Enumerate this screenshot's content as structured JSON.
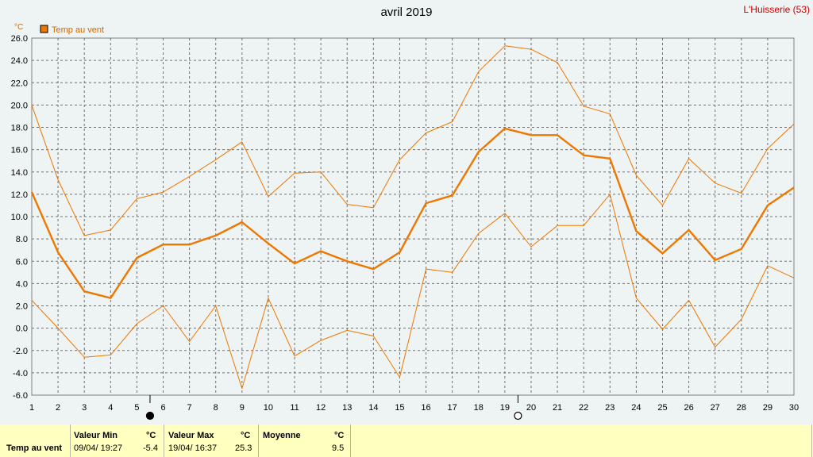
{
  "chart_data": {
    "type": "line",
    "title": "avril 2019",
    "station": "L'Huisserie (53)",
    "ylabel": "°C",
    "xlabel": "",
    "ylim": [
      -6,
      26
    ],
    "ytick_step": 2,
    "grid": true,
    "legend": {
      "placement": "top-left",
      "label": "Temp au vent",
      "color": "#ee7700"
    },
    "x": [
      1,
      2,
      3,
      4,
      5,
      6,
      7,
      8,
      9,
      10,
      11,
      12,
      13,
      14,
      15,
      16,
      17,
      18,
      19,
      20,
      21,
      22,
      23,
      24,
      25,
      26,
      27,
      28,
      29,
      30
    ],
    "series": [
      {
        "role": "max",
        "color": "#ee7700",
        "values": [
          20.0,
          13.3,
          8.3,
          8.8,
          11.6,
          12.2,
          13.6,
          15.1,
          16.7,
          11.8,
          13.9,
          14.0,
          11.1,
          10.8,
          15.1,
          17.5,
          18.5,
          23.0,
          25.3,
          25.0,
          23.8,
          19.9,
          19.2,
          13.7,
          11.0,
          15.2,
          13.0,
          12.1,
          16.1,
          18.3
        ]
      },
      {
        "role": "mean",
        "color": "#ee7700",
        "values": [
          12.2,
          6.8,
          3.3,
          2.7,
          6.3,
          7.5,
          7.5,
          8.3,
          9.5,
          7.6,
          5.8,
          6.9,
          6.0,
          5.3,
          6.8,
          11.2,
          11.9,
          15.8,
          17.9,
          17.3,
          17.3,
          15.5,
          15.2,
          8.7,
          6.7,
          8.8,
          6.1,
          7.1,
          11.0,
          12.6
        ]
      },
      {
        "role": "min",
        "color": "#ee7700",
        "values": [
          2.5,
          0.0,
          -2.6,
          -2.4,
          0.4,
          2.0,
          -1.2,
          2.0,
          -5.4,
          2.7,
          -2.5,
          -1.1,
          -0.2,
          -0.7,
          -4.4,
          5.3,
          5.0,
          8.5,
          10.3,
          7.3,
          9.2,
          9.2,
          12.0,
          2.7,
          -0.1,
          2.5,
          -1.7,
          0.8,
          5.6,
          4.5
        ]
      }
    ],
    "moon_phases": [
      {
        "day": 5.5,
        "phase": "new-moon"
      },
      {
        "day": 19.5,
        "phase": "full-moon"
      }
    ]
  },
  "stats": {
    "row_label": "Temp au vent",
    "min": {
      "header": "Valeur Min",
      "unit": "°C",
      "date": "09/04/ 19:27",
      "value": "-5.4"
    },
    "max": {
      "header": "Valeur Max",
      "unit": "°C",
      "date": "19/04/ 16:37",
      "value": "25.3"
    },
    "mean": {
      "header": "Moyenne",
      "unit": "°C",
      "value": "9.5"
    }
  }
}
